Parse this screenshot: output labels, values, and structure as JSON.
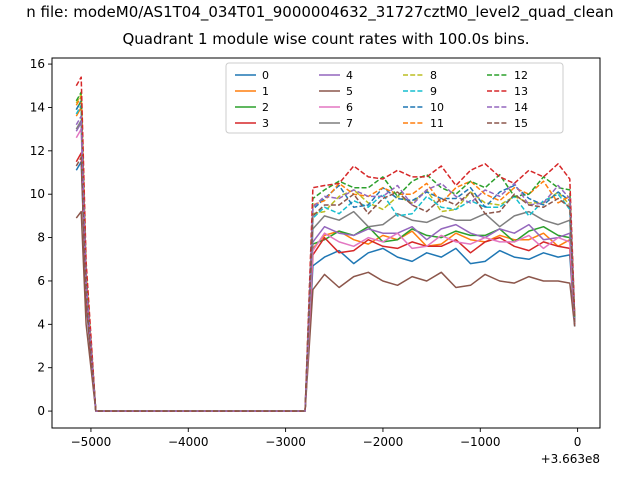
{
  "figure": {
    "suptitle": "n file: modeM0/AS1T04_034T01_9000004632_31727cztM0_level2_quad_clean",
    "title": "Quadrant 1 module wise count rates with 100.0s bins."
  },
  "chart_data": {
    "type": "line",
    "title": "Quadrant 1 module wise count rates with 100.0s bins.",
    "xlabel": "",
    "ylabel": "",
    "x_offset_label": "+3.663e8",
    "xlim": [
      -5400,
      230
    ],
    "ylim": [
      -0.78,
      16.28
    ],
    "xticks": [
      -5000,
      -4000,
      -3000,
      -2000,
      -1000,
      0
    ],
    "yticks": [
      0,
      2,
      4,
      6,
      8,
      10,
      12,
      14,
      16
    ],
    "grid": false,
    "legend_position": "upper center",
    "legend_columns": 4,
    "x": [
      -5150,
      -5100,
      -5050,
      -4950,
      -4600,
      -4200,
      -3800,
      -3400,
      -3000,
      -2800,
      -2720,
      -2600,
      -2450,
      -2300,
      -2150,
      -2000,
      -1850,
      -1700,
      -1550,
      -1400,
      -1250,
      -1100,
      -950,
      -800,
      -650,
      -500,
      -350,
      -200,
      -80,
      -30
    ],
    "series": [
      {
        "name": "0",
        "color": "#1f77b4",
        "style": "solid",
        "values": [
          11.1,
          11.5,
          5.0,
          0,
          0,
          0,
          0,
          0,
          0,
          0,
          6.7,
          7.1,
          7.4,
          6.8,
          7.3,
          7.5,
          7.1,
          6.9,
          7.3,
          7.1,
          7.5,
          6.8,
          6.9,
          7.4,
          7.1,
          7.0,
          7.3,
          7.1,
          7.2,
          3.9
        ]
      },
      {
        "name": "1",
        "color": "#ff7f0e",
        "style": "solid",
        "values": [
          13.6,
          14.0,
          6.1,
          0,
          0,
          0,
          0,
          0,
          0,
          0,
          7.5,
          8.1,
          8.3,
          7.9,
          7.7,
          8.1,
          7.9,
          8.3,
          7.6,
          7.7,
          8.2,
          7.9,
          7.8,
          8.1,
          7.9,
          7.9,
          8.2,
          7.6,
          7.9,
          4.1
        ]
      },
      {
        "name": "2",
        "color": "#2ca02c",
        "style": "solid",
        "values": [
          13.9,
          14.3,
          6.3,
          0,
          0,
          0,
          0,
          0,
          0,
          0,
          7.7,
          7.9,
          8.3,
          8.1,
          8.5,
          7.8,
          7.9,
          8.4,
          8.1,
          8.0,
          8.3,
          8.1,
          8.1,
          8.4,
          7.8,
          8.3,
          8.5,
          8.1,
          8.0,
          4.2
        ]
      },
      {
        "name": "3",
        "color": "#d62728",
        "style": "solid",
        "values": [
          11.5,
          11.9,
          5.2,
          0,
          0,
          0,
          0,
          0,
          0,
          0,
          7.2,
          8.0,
          7.3,
          7.4,
          7.9,
          7.6,
          7.5,
          7.8,
          7.6,
          7.6,
          7.9,
          7.3,
          7.8,
          8.0,
          7.6,
          7.4,
          7.8,
          7.6,
          7.5,
          4.0
        ]
      },
      {
        "name": "4",
        "color": "#9467bd",
        "style": "solid",
        "values": [
          12.9,
          13.3,
          5.8,
          0,
          0,
          0,
          0,
          0,
          0,
          0,
          7.8,
          8.5,
          8.2,
          8.1,
          8.4,
          8.2,
          8.2,
          8.5,
          7.9,
          8.4,
          8.6,
          8.2,
          8.0,
          8.4,
          8.2,
          8.6,
          7.9,
          8.0,
          8.2,
          4.2
        ]
      },
      {
        "name": "5",
        "color": "#8c564b",
        "style": "solid",
        "values": [
          8.9,
          9.2,
          4.0,
          0,
          0,
          0,
          0,
          0,
          0,
          0,
          5.6,
          6.3,
          5.7,
          6.2,
          6.4,
          6.0,
          5.8,
          6.2,
          6.0,
          6.4,
          5.7,
          5.8,
          6.3,
          6.0,
          5.9,
          6.2,
          6.0,
          6.0,
          5.9,
          3.9
        ]
      },
      {
        "name": "6",
        "color": "#e377c2",
        "style": "solid",
        "values": [
          12.6,
          13.0,
          5.7,
          0,
          0,
          0,
          0,
          0,
          0,
          0,
          7.4,
          8.2,
          7.8,
          7.6,
          8.0,
          7.8,
          8.2,
          7.5,
          7.6,
          8.1,
          7.8,
          7.7,
          8.0,
          7.8,
          7.8,
          8.1,
          7.5,
          8.0,
          7.8,
          4.1
        ]
      },
      {
        "name": "7",
        "color": "#7f7f7f",
        "style": "solid",
        "values": [
          13.0,
          13.4,
          5.9,
          0,
          0,
          0,
          0,
          0,
          0,
          0,
          8.4,
          9.0,
          8.8,
          9.2,
          8.5,
          8.6,
          9.1,
          8.8,
          8.7,
          9.0,
          8.8,
          8.8,
          9.1,
          8.5,
          9.0,
          9.2,
          8.8,
          8.6,
          8.8,
          4.3
        ]
      },
      {
        "name": "8",
        "color": "#bcbd22",
        "style": "dashed",
        "values": [
          14.2,
          14.6,
          6.4,
          0,
          0,
          0,
          0,
          0,
          0,
          0,
          9.1,
          9.2,
          9.9,
          10.2,
          9.6,
          9.3,
          9.9,
          9.6,
          10.2,
          9.2,
          9.3,
          10.1,
          9.6,
          9.5,
          9.9,
          9.6,
          9.6,
          10.1,
          9.5,
          4.2
        ]
      },
      {
        "name": "9",
        "color": "#17becf",
        "style": "dashed",
        "values": [
          13.7,
          14.1,
          6.2,
          0,
          0,
          0,
          0,
          0,
          0,
          0,
          8.9,
          9.4,
          9.1,
          9.7,
          9.4,
          10.0,
          9.0,
          9.1,
          9.9,
          9.4,
          9.3,
          9.7,
          9.4,
          9.4,
          9.9,
          9.0,
          9.7,
          10.0,
          9.3,
          4.1
        ]
      },
      {
        "name": "10",
        "color": "#1f77b4",
        "style": "dashed",
        "values": [
          13.9,
          14.3,
          6.3,
          0,
          0,
          0,
          0,
          0,
          0,
          0,
          9.3,
          9.8,
          10.4,
          9.4,
          9.5,
          10.3,
          9.8,
          9.7,
          10.1,
          9.8,
          9.8,
          10.3,
          9.4,
          10.1,
          10.4,
          9.8,
          9.5,
          10.1,
          9.7,
          4.2
        ]
      },
      {
        "name": "11",
        "color": "#ff7f0e",
        "style": "dashed",
        "values": [
          14.1,
          14.5,
          6.4,
          0,
          0,
          0,
          0,
          0,
          0,
          0,
          9.5,
          9.7,
          10.5,
          10.0,
          9.9,
          10.3,
          10.0,
          10.0,
          10.5,
          9.6,
          10.3,
          10.6,
          10.0,
          9.7,
          10.3,
          10.0,
          10.6,
          9.6,
          9.9,
          4.3
        ]
      },
      {
        "name": "12",
        "color": "#2ca02c",
        "style": "dashed",
        "values": [
          14.3,
          14.7,
          6.5,
          0,
          0,
          0,
          0,
          0,
          0,
          0,
          9.8,
          10.2,
          10.6,
          10.3,
          10.3,
          10.8,
          9.9,
          10.6,
          10.9,
          10.3,
          10.0,
          10.6,
          10.3,
          10.9,
          9.9,
          10.0,
          10.8,
          10.3,
          10.2,
          4.3
        ]
      },
      {
        "name": "13",
        "color": "#d62728",
        "style": "dashed",
        "values": [
          15.0,
          15.4,
          6.9,
          0,
          0,
          0,
          0,
          0,
          0,
          0,
          10.3,
          10.4,
          10.5,
          11.3,
          10.8,
          10.7,
          11.1,
          10.8,
          10.8,
          11.3,
          10.4,
          11.1,
          11.4,
          10.8,
          10.5,
          11.1,
          10.8,
          11.4,
          10.7,
          4.4
        ]
      },
      {
        "name": "14",
        "color": "#9467bd",
        "style": "dashed",
        "values": [
          13.2,
          13.6,
          6.0,
          0,
          0,
          0,
          0,
          0,
          0,
          0,
          9.4,
          9.9,
          9.8,
          10.2,
          9.9,
          9.9,
          10.4,
          9.5,
          10.2,
          10.5,
          9.9,
          9.6,
          10.2,
          9.9,
          10.5,
          9.5,
          9.6,
          10.4,
          9.8,
          4.2
        ]
      },
      {
        "name": "15",
        "color": "#8c564b",
        "style": "dashed",
        "values": [
          11.3,
          11.7,
          5.2,
          0,
          0,
          0,
          0,
          0,
          0,
          0,
          9.0,
          9.5,
          9.5,
          10.0,
          9.1,
          9.8,
          10.1,
          9.5,
          9.2,
          9.8,
          9.5,
          10.1,
          9.1,
          9.2,
          10.0,
          9.5,
          9.4,
          9.8,
          9.4,
          4.1
        ]
      }
    ]
  }
}
